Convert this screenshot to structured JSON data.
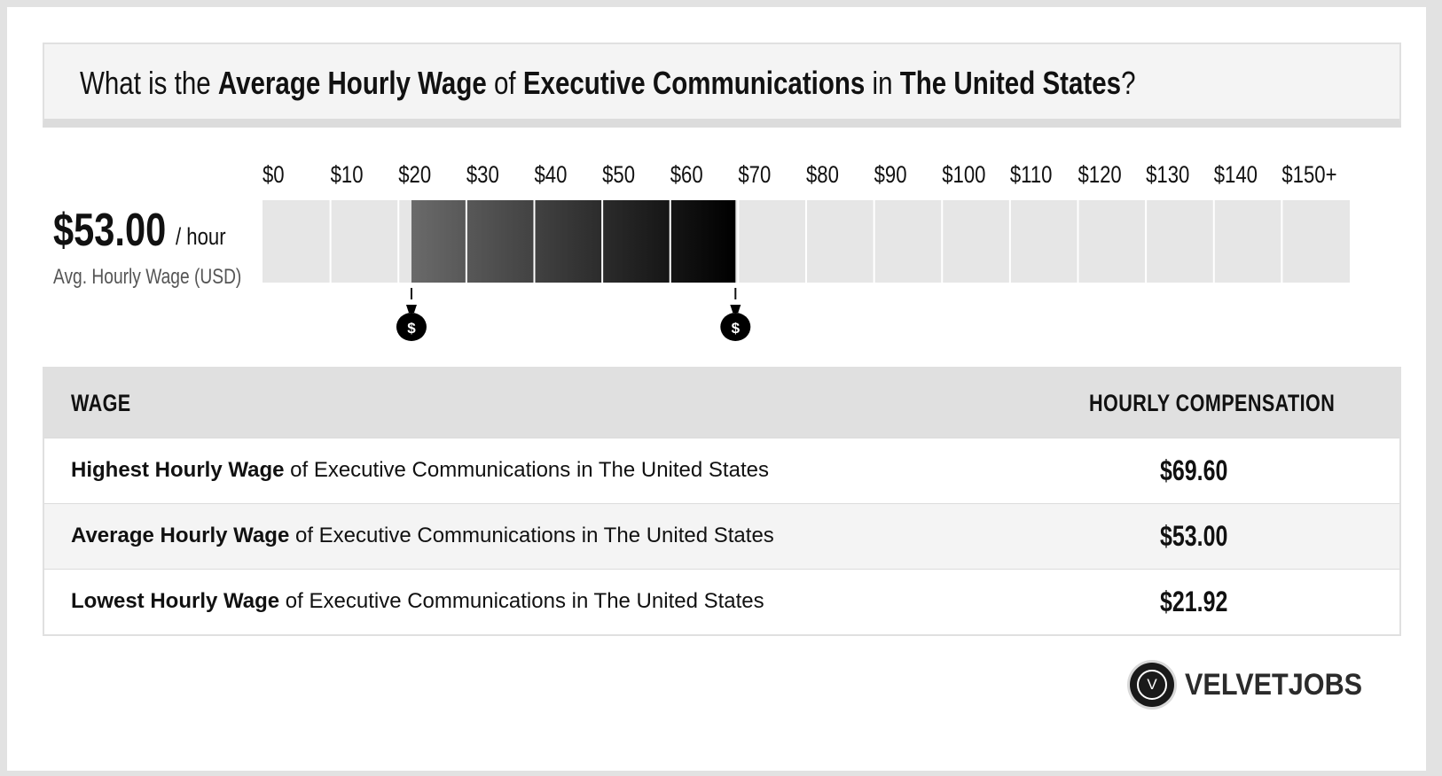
{
  "title": {
    "parts": [
      {
        "text": "What is the ",
        "bold": false
      },
      {
        "text": "Average Hourly Wage",
        "bold": true
      },
      {
        "text": " of ",
        "bold": false
      },
      {
        "text": "Executive Communications",
        "bold": true
      },
      {
        "text": " in ",
        "bold": false
      },
      {
        "text": "The United States",
        "bold": true
      },
      {
        "text": "?",
        "bold": false
      }
    ]
  },
  "summary": {
    "value": "$53.00",
    "unit": "/ hour",
    "caption": "Avg. Hourly Wage (USD)"
  },
  "chart_data": {
    "type": "bar",
    "orientation": "horizontal-range",
    "tick_labels": [
      "$0",
      "$10",
      "$20",
      "$30",
      "$40",
      "$50",
      "$60",
      "$70",
      "$80",
      "$90",
      "$100",
      "$110",
      "$120",
      "$130",
      "$140",
      "$150+"
    ],
    "xlim": [
      0,
      160
    ],
    "range": {
      "low": 21.92,
      "high": 69.6
    },
    "markers": [
      {
        "value": 21.92,
        "icon": "money-bag-icon"
      },
      {
        "value": 69.6,
        "icon": "money-bag-icon"
      }
    ],
    "colors": {
      "track": "#e6e6e6",
      "range_start": "#6a6a6a",
      "range_end": "#000000",
      "gap": "#ffffff"
    }
  },
  "table": {
    "headers": {
      "wage": "WAGE",
      "compensation": "HOURLY COMPENSATION"
    },
    "rows": [
      {
        "label_bold": "Highest Hourly Wage",
        "label_rest": " of Executive Communications in The United States",
        "value": "$69.60"
      },
      {
        "label_bold": "Average Hourly Wage",
        "label_rest": " of Executive Communications in The United States",
        "value": "$53.00"
      },
      {
        "label_bold": "Lowest Hourly Wage",
        "label_rest": " of Executive Communications in The United States",
        "value": "$21.92"
      }
    ]
  },
  "logo": {
    "mark": "V",
    "text": "VELVETJOBS"
  }
}
